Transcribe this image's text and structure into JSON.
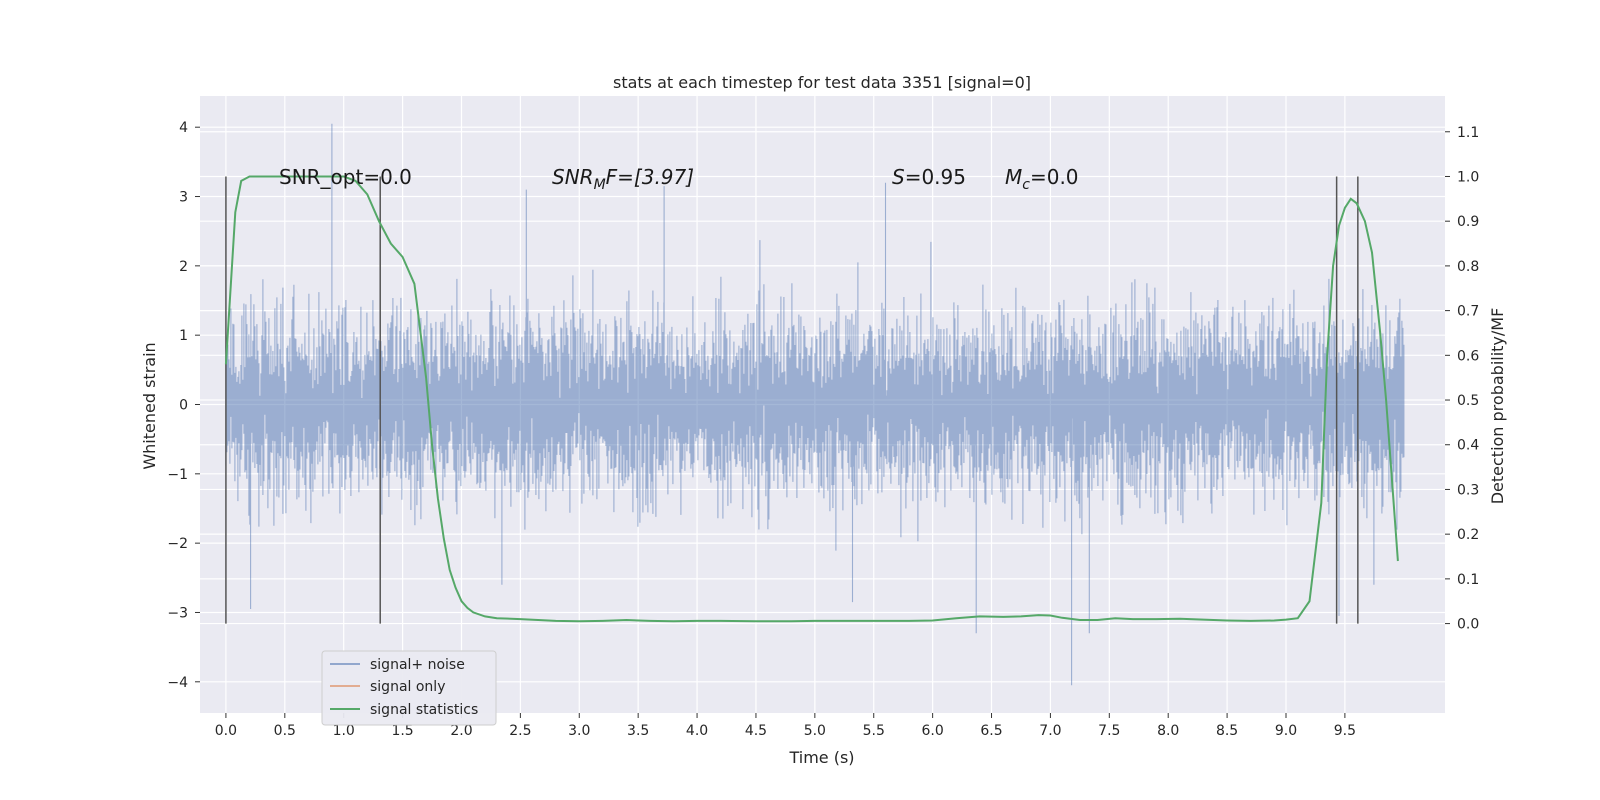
{
  "chart_data": {
    "type": "line",
    "title": "stats at each timestep for test data 3351 [signal=0]",
    "xlabel": "Time (s)",
    "ylabel_left": "Whitened strain",
    "ylabel_right": "Detection probability/MF",
    "xlim": [
      -0.22,
      10.35
    ],
    "ylim_left": [
      -4.45,
      4.45
    ],
    "ylim_right": [
      -0.2,
      1.18
    ],
    "x_ticks": [
      0.0,
      0.5,
      1.0,
      1.5,
      2.0,
      2.5,
      3.0,
      3.5,
      4.0,
      4.5,
      5.0,
      5.5,
      6.0,
      6.5,
      7.0,
      7.5,
      8.0,
      8.5,
      9.0,
      9.5
    ],
    "x_tick_labels": [
      "0.0",
      "0.5",
      "1.0",
      "1.5",
      "2.0",
      "2.5",
      "3.0",
      "3.5",
      "4.0",
      "4.5",
      "5.0",
      "5.5",
      "6.0",
      "6.5",
      "7.0",
      "7.5",
      "8.0",
      "8.5",
      "9.0",
      "9.5"
    ],
    "y_left_ticks": [
      -4,
      -3,
      -2,
      -1,
      0,
      1,
      2,
      3,
      4
    ],
    "y_left_tick_labels": [
      "−4",
      "−3",
      "−2",
      "−1",
      "0",
      "1",
      "2",
      "3",
      "4"
    ],
    "y_right_ticks": [
      0.0,
      0.1,
      0.2,
      0.3,
      0.4,
      0.5,
      0.6,
      0.7,
      0.8,
      0.9,
      1.0,
      1.1
    ],
    "y_right_tick_labels": [
      "0.0",
      "0.1",
      "0.2",
      "0.3",
      "0.4",
      "0.5",
      "0.6",
      "0.7",
      "0.8",
      "0.9",
      "1.0",
      "1.1"
    ],
    "grid": true,
    "legend_placement": "lower-left",
    "annotations": {
      "snr_opt": "SNR_opt=0.0",
      "snr_mf_name": "SNR",
      "snr_mf_sub": "M",
      "snr_mf_rest": "F=[3.97]",
      "s_name": "S",
      "s_rest": "=0.95",
      "mc_name": "M",
      "mc_sub": "c",
      "mc_rest": "=0.0"
    },
    "vertical_lines_x": [
      0.0,
      1.31,
      9.43,
      9.61
    ],
    "series": [
      {
        "name": "signal+ noise",
        "axis": "left",
        "x_range": [
          0.0,
          10.0
        ],
        "color": "#4c72b0",
        "std": 0.62,
        "extremes": [
          {
            "x": 0.9,
            "y": 4.05
          },
          {
            "x": 7.18,
            "y": -4.05
          },
          {
            "x": 6.37,
            "y": -3.3
          },
          {
            "x": 7.33,
            "y": -3.3
          },
          {
            "x": 2.55,
            "y": 3.1
          },
          {
            "x": 3.72,
            "y": 3.15
          },
          {
            "x": 5.6,
            "y": 3.2
          },
          {
            "x": 0.21,
            "y": -2.95
          },
          {
            "x": 5.32,
            "y": -2.85
          },
          {
            "x": 9.45,
            "y": -3.05
          }
        ]
      },
      {
        "name": "signal only",
        "axis": "left",
        "color": "#dd8452",
        "values": []
      },
      {
        "name": "signal statistics",
        "axis": "right",
        "color": "#55a868",
        "x": [
          0.0,
          0.08,
          0.13,
          0.2,
          0.3,
          0.5,
          0.7,
          0.9,
          1.0,
          1.1,
          1.2,
          1.3,
          1.4,
          1.5,
          1.6,
          1.7,
          1.75,
          1.8,
          1.85,
          1.9,
          1.95,
          2.0,
          2.05,
          2.1,
          2.2,
          2.3,
          2.5,
          2.8,
          3.0,
          3.2,
          3.4,
          3.6,
          3.8,
          4.0,
          4.2,
          4.5,
          4.8,
          5.0,
          5.3,
          5.6,
          5.8,
          6.0,
          6.2,
          6.4,
          6.6,
          6.75,
          6.9,
          7.0,
          7.1,
          7.25,
          7.4,
          7.55,
          7.7,
          7.9,
          8.1,
          8.3,
          8.5,
          8.7,
          8.9,
          9.0,
          9.1,
          9.2,
          9.3,
          9.35,
          9.4,
          9.45,
          9.5,
          9.55,
          9.6,
          9.67,
          9.73,
          9.8,
          9.85,
          9.9,
          9.95
        ],
        "values": [
          0.58,
          0.92,
          0.99,
          1.0,
          1.0,
          1.0,
          1.0,
          1.0,
          1.0,
          0.99,
          0.96,
          0.9,
          0.85,
          0.82,
          0.76,
          0.55,
          0.4,
          0.28,
          0.19,
          0.12,
          0.08,
          0.05,
          0.035,
          0.025,
          0.016,
          0.012,
          0.01,
          0.006,
          0.005,
          0.006,
          0.008,
          0.006,
          0.005,
          0.006,
          0.006,
          0.005,
          0.005,
          0.006,
          0.006,
          0.006,
          0.006,
          0.007,
          0.012,
          0.016,
          0.015,
          0.016,
          0.019,
          0.018,
          0.013,
          0.008,
          0.008,
          0.012,
          0.01,
          0.01,
          0.011,
          0.009,
          0.007,
          0.006,
          0.007,
          0.009,
          0.012,
          0.05,
          0.27,
          0.6,
          0.8,
          0.89,
          0.93,
          0.95,
          0.94,
          0.9,
          0.83,
          0.65,
          0.5,
          0.32,
          0.14
        ]
      }
    ]
  }
}
